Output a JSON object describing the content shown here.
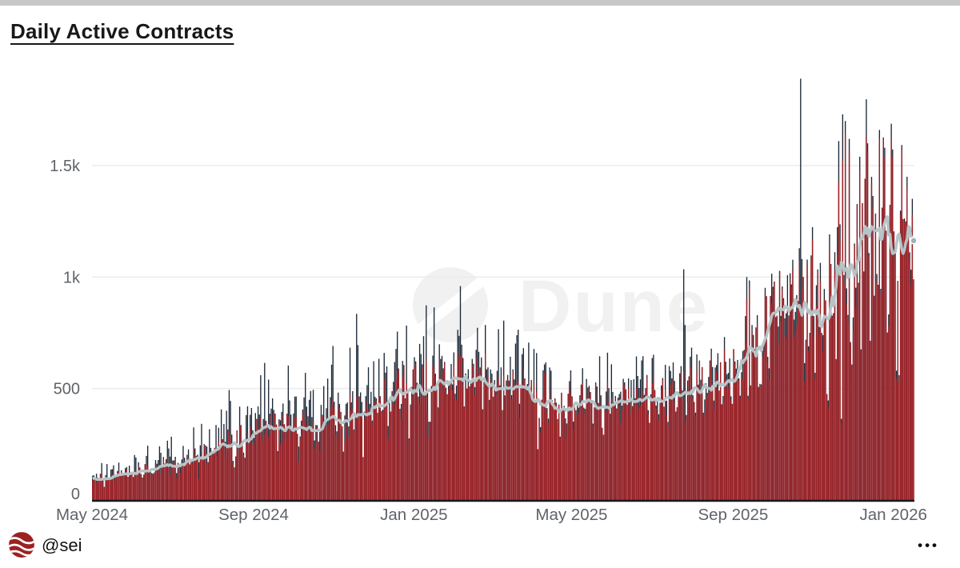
{
  "window": {
    "top_strip_color": "#c7c7c7"
  },
  "header": {
    "title": "Daily Active Contracts"
  },
  "watermark": {
    "text": "Dune",
    "color": "#f1f1f1"
  },
  "footer": {
    "handle": "@sei",
    "menu_label": "•••",
    "logo_color": "#9C2222"
  },
  "chart_data": {
    "type": "bar",
    "title": "Daily Active Contracts",
    "x_axis": {
      "start_date": "2024-05-01",
      "end_date": "2026-01-16",
      "tick_labels": [
        "May 2024",
        "Sep 2024",
        "Jan 2025",
        "May 2025",
        "Sep 2025",
        "Jan 2026"
      ],
      "tick_day_offsets": [
        0,
        123,
        245,
        365,
        488,
        610
      ],
      "label_color": "#5f6368"
    },
    "y_axis": {
      "tick_labels": [
        "0",
        "500",
        "1k",
        "1.5k"
      ],
      "tick_values": [
        0,
        500,
        1000,
        1500
      ],
      "ylim": [
        0,
        1950
      ],
      "grid": true,
      "grid_color": "#ececec",
      "baseline_color": "#16191d",
      "label_color": "#5f6368"
    },
    "series": [
      {
        "name": "daily-active-contracts-total",
        "type": "bar",
        "color": "#1B2837"
      },
      {
        "name": "daily-active-contracts",
        "type": "bar",
        "color": "#9E1E23"
      },
      {
        "name": "moving-average",
        "type": "line",
        "color": "#B6C4C7"
      }
    ],
    "trend_keyframes": [
      [
        0,
        95
      ],
      [
        10,
        110
      ],
      [
        20,
        115
      ],
      [
        31,
        130
      ],
      [
        61,
        165
      ],
      [
        92,
        235
      ],
      [
        110,
        270
      ],
      [
        123,
        305
      ],
      [
        131,
        345
      ],
      [
        140,
        330
      ],
      [
        153,
        340
      ],
      [
        168,
        355
      ],
      [
        184,
        375
      ],
      [
        199,
        405
      ],
      [
        214,
        435
      ],
      [
        230,
        495
      ],
      [
        245,
        525
      ],
      [
        260,
        560
      ],
      [
        275,
        575
      ],
      [
        290,
        565
      ],
      [
        306,
        555
      ],
      [
        321,
        540
      ],
      [
        337,
        505
      ],
      [
        352,
        470
      ],
      [
        365,
        455
      ],
      [
        381,
        450
      ],
      [
        396,
        460
      ],
      [
        411,
        470
      ],
      [
        426,
        478
      ],
      [
        441,
        490
      ],
      [
        457,
        525
      ],
      [
        472,
        565
      ],
      [
        488,
        595
      ],
      [
        496,
        610
      ],
      [
        503,
        650
      ],
      [
        510,
        730
      ],
      [
        518,
        830
      ],
      [
        526,
        870
      ],
      [
        534,
        885
      ],
      [
        541,
        870
      ],
      [
        549,
        885
      ],
      [
        557,
        870
      ],
      [
        565,
        855
      ],
      [
        572,
        905
      ],
      [
        580,
        1060
      ],
      [
        588,
        1210
      ],
      [
        595,
        1300
      ],
      [
        600,
        1330
      ],
      [
        607,
        1295
      ],
      [
        613,
        1240
      ],
      [
        619,
        1215
      ],
      [
        625,
        1195
      ]
    ],
    "spike_overrides": [
      {
        "day": 128,
        "total": 560
      },
      {
        "day": 131,
        "total": 615
      },
      {
        "day": 134,
        "total": 540
      },
      {
        "day": 201,
        "total": 835
      },
      {
        "day": 222,
        "total": 660
      },
      {
        "day": 249,
        "total": 700
      },
      {
        "day": 252,
        "total": 735
      },
      {
        "day": 419,
        "total": 645
      },
      {
        "day": 450,
        "total": 1035
      },
      {
        "day": 451,
        "total": 785
      },
      {
        "day": 498,
        "red": 900,
        "total": 1000
      },
      {
        "day": 500,
        "red": 950,
        "total": 985
      },
      {
        "day": 539,
        "red": 880,
        "total": 1890
      },
      {
        "day": 568,
        "red": 1430,
        "total": 1610
      },
      {
        "day": 571,
        "red": 1520,
        "total": 1730
      },
      {
        "day": 573,
        "red": 1640,
        "total": 1700
      },
      {
        "day": 576,
        "red": 1560,
        "total": 1620
      },
      {
        "day": 584,
        "red": 1480,
        "total": 1540
      },
      {
        "day": 590,
        "red": 1560,
        "total": 1600
      },
      {
        "day": 599,
        "red": 1620,
        "total": 1660
      },
      {
        "day": 603,
        "red": 1540,
        "total": 1580
      },
      {
        "day": 612,
        "red": 545,
        "total": 580
      },
      {
        "day": 614,
        "red": 520,
        "total": 560
      },
      {
        "day": 620,
        "red": 1400,
        "total": 1450
      }
    ],
    "reconstruction": {
      "days": 626,
      "seed": 1337,
      "weekend_dip": 0.8,
      "volatility_keyframes": [
        [
          0,
          0.22
        ],
        [
          245,
          0.16
        ],
        [
          460,
          0.17
        ],
        [
          520,
          0.2
        ],
        [
          556,
          0.34
        ],
        [
          625,
          0.3
        ]
      ],
      "cap_keyframes": [
        [
          0,
          0.9
        ],
        [
          123,
          0.7
        ],
        [
          200,
          0.55
        ],
        [
          245,
          0.5
        ],
        [
          365,
          0.45
        ],
        [
          480,
          0.35
        ],
        [
          556,
          0.12
        ],
        [
          625,
          0.09
        ]
      ],
      "ma_window": 13
    }
  }
}
